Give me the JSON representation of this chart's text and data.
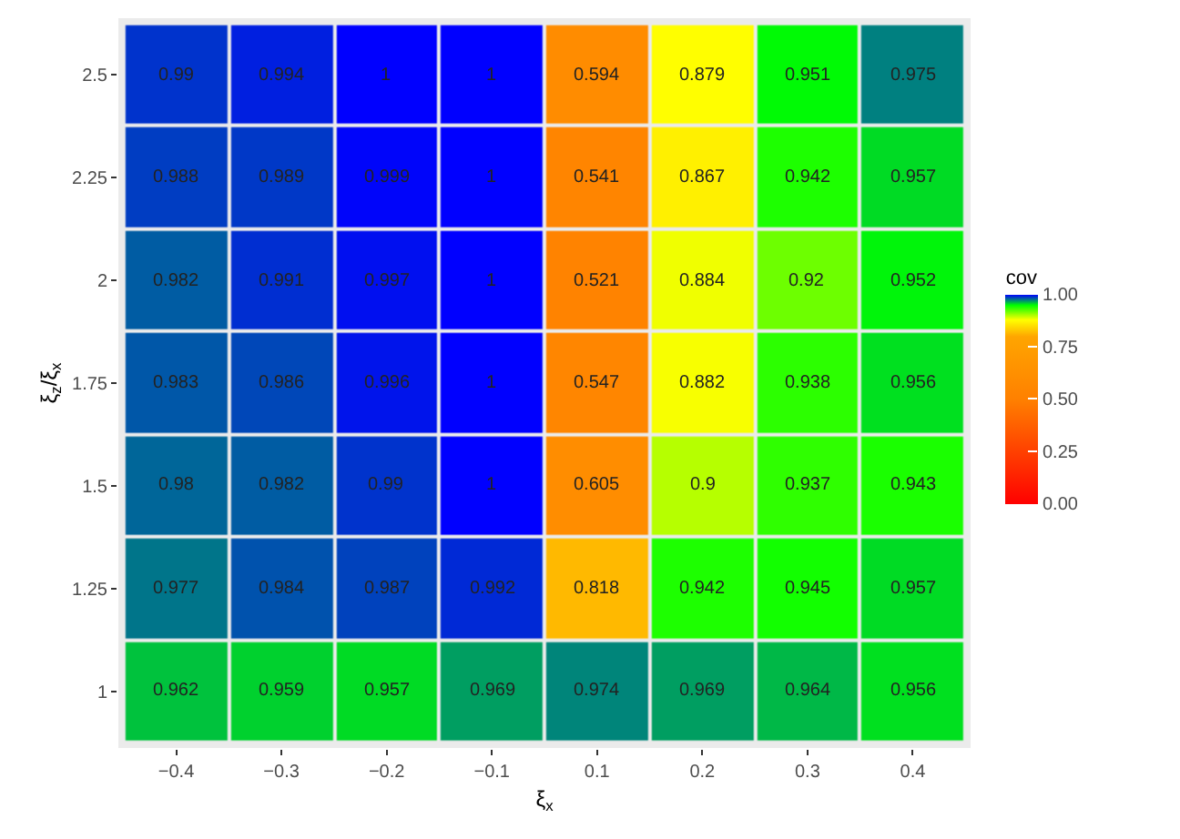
{
  "chart_data": {
    "type": "heatmap",
    "xlabel": "ξ$_{x}$",
    "ylabel": "ξ$_{z}$/ξ$_{x}$",
    "clabel": "cov",
    "categories": [
      "−0.4",
      "−0.3",
      "−0.2",
      "−0.1",
      "0.1",
      "0.2",
      "0.3",
      "0.4"
    ],
    "y_categories": [
      "2.5",
      "2.25",
      "2",
      "1.75",
      "1.5",
      "1.25",
      "1"
    ],
    "cells": [
      [
        0.99,
        0.994,
        1,
        1,
        0.594,
        0.879,
        0.951,
        0.975
      ],
      [
        0.988,
        0.989,
        0.999,
        1,
        0.541,
        0.867,
        0.942,
        0.957
      ],
      [
        0.982,
        0.991,
        0.997,
        1,
        0.521,
        0.884,
        0.92,
        0.952
      ],
      [
        0.983,
        0.986,
        0.996,
        1,
        0.547,
        0.882,
        0.938,
        0.956
      ],
      [
        0.98,
        0.982,
        0.99,
        1,
        0.605,
        0.9,
        0.937,
        0.943
      ],
      [
        0.977,
        0.984,
        0.987,
        0.992,
        0.818,
        0.942,
        0.945,
        0.957
      ],
      [
        0.962,
        0.959,
        0.957,
        0.969,
        0.974,
        0.969,
        0.964,
        0.956
      ]
    ],
    "data_labels": true,
    "clim": [
      0,
      1
    ],
    "cticks": [
      {
        "value": 0,
        "label": "0.00"
      },
      {
        "value": 0.25,
        "label": "0.25"
      },
      {
        "value": 0.5,
        "label": "0.50"
      },
      {
        "value": 0.75,
        "label": "0.75"
      },
      {
        "value": 1,
        "label": "1.00"
      }
    ]
  }
}
